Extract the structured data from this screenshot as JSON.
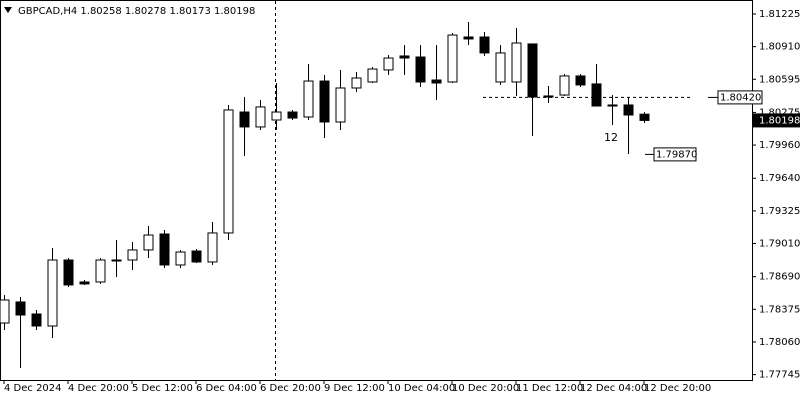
{
  "chart_data": {
    "type": "candlestick",
    "title": "GBPCAD,H4  1.80258 1.80278 1.80173 1.80198",
    "categories": [
      "4 Dec 2024",
      null,
      null,
      null,
      "4 Dec 20:00",
      null,
      null,
      null,
      "5 Dec 12:00",
      null,
      null,
      null,
      "6 Dec 04:00",
      null,
      null,
      null,
      "6 Dec 20:00",
      null,
      null,
      null,
      "9 Dec 12:00",
      null,
      null,
      null,
      "10 Dec 04:00",
      null,
      null,
      null,
      "10 Dec 20:00",
      null,
      null,
      null,
      "11 Dec 12:00",
      null,
      null,
      null,
      "12 Dec 04:00",
      null,
      null,
      null,
      "12 Dec 20:00"
    ],
    "open": [
      1.78243,
      1.78446,
      1.7833,
      1.78214,
      1.78851,
      1.78639,
      1.78639,
      1.78851,
      1.78851,
      1.78948,
      1.79102,
      1.78803,
      1.78938,
      1.78832,
      1.79112,
      1.80279,
      1.80135,
      1.80202,
      1.80279,
      1.80231,
      1.80578,
      1.80183,
      1.80511,
      1.80569,
      1.80685,
      1.8082,
      1.8081,
      1.80588,
      1.80569,
      1.81003,
      1.81003,
      1.80569,
      1.80569,
      1.80936,
      1.80434,
      1.80443,
      1.80627,
      1.8055,
      1.80347,
      1.80347,
      1.80258
    ],
    "high": [
      1.78513,
      1.78494,
      1.78369,
      1.78967,
      1.7887,
      1.78658,
      1.7887,
      1.79044,
      1.79025,
      1.79179,
      1.79141,
      1.78948,
      1.78957,
      1.79218,
      1.80347,
      1.80424,
      1.80395,
      1.80559,
      1.80299,
      1.80743,
      1.80636,
      1.80685,
      1.80665,
      1.80714,
      1.80829,
      1.80926,
      1.80926,
      1.80926,
      1.81042,
      1.81148,
      1.81051,
      1.80926,
      1.8109,
      1.80936,
      1.8053,
      1.80646,
      1.80646,
      1.80743,
      1.80443,
      1.80424,
      1.80278
    ],
    "low": [
      1.78176,
      1.77809,
      1.78176,
      1.78098,
      1.78591,
      1.7861,
      1.7862,
      1.78687,
      1.78755,
      1.7887,
      1.78774,
      1.78774,
      1.78822,
      1.78803,
      1.79044,
      1.79855,
      1.80106,
      1.80106,
      1.80202,
      1.80202,
      1.80028,
      1.80106,
      1.80472,
      1.80559,
      1.80636,
      1.80636,
      1.80521,
      1.80395,
      1.80559,
      1.80926,
      1.8082,
      1.8054,
      1.80434,
      1.80048,
      1.80366,
      1.80434,
      1.80521,
      1.80337,
      1.80154,
      1.79874,
      1.80173
    ],
    "close": [
      1.78465,
      1.7832,
      1.78214,
      1.78851,
      1.7861,
      1.7862,
      1.78851,
      1.78845,
      1.78948,
      1.79092,
      1.78803,
      1.78928,
      1.78832,
      1.79112,
      1.80299,
      1.80135,
      1.80328,
      1.80279,
      1.80221,
      1.80578,
      1.80183,
      1.80511,
      1.80607,
      1.80694,
      1.808,
      1.808,
      1.80569,
      1.80559,
      1.81022,
      1.80984,
      1.80849,
      1.80849,
      1.80945,
      1.80424,
      1.80424,
      1.80627,
      1.8054,
      1.80337,
      1.80337,
      1.8025,
      1.80198
    ],
    "up_color": "#ffffff",
    "down_color": "#000000",
    "ylim": [
      1.77693,
      1.8136
    ],
    "yticks": [
      1.81225,
      {
        "value": 1.8091,
        "label": "1.80910"
      },
      1.80595,
      1.80275,
      {
        "value": 1.7996,
        "label": "1.79960"
      },
      {
        "value": 1.7964,
        "label": "1.79640"
      },
      1.79325,
      {
        "value": 1.7901,
        "label": "1.79010"
      },
      {
        "value": 1.7869,
        "label": "1.78690"
      },
      1.78375,
      {
        "value": 1.7806,
        "label": "1.78060"
      },
      1.77745
    ],
    "price_labels": [
      {
        "value": 1.8042,
        "label": "1.80420"
      },
      {
        "value": 1.7987,
        "label": "1.79870"
      }
    ],
    "current_price": 1.80198,
    "annotation": "12"
  }
}
